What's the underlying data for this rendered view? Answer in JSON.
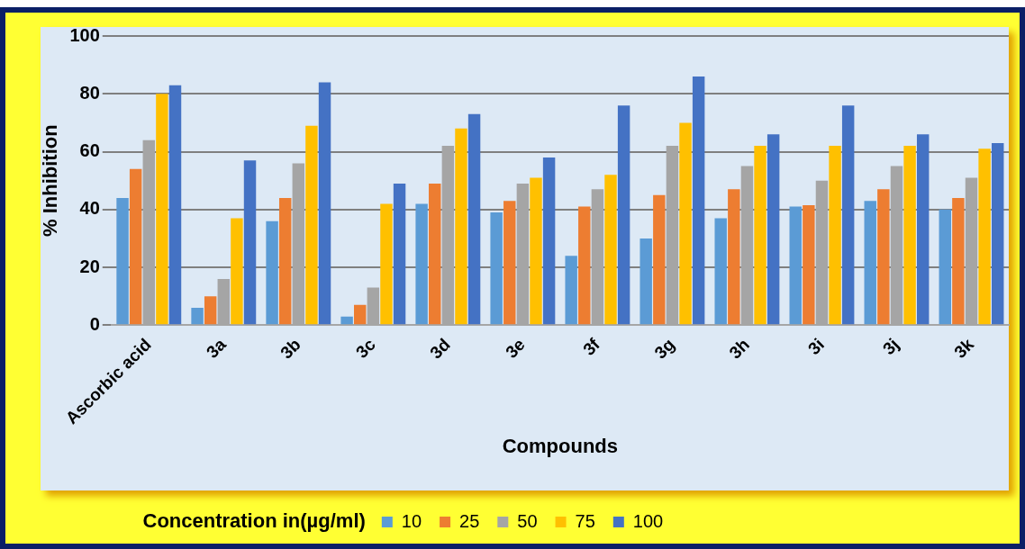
{
  "chart_data": {
    "type": "bar",
    "categories": [
      "Ascorbic acid",
      "3a",
      "3b",
      "3c",
      "3d",
      "3e",
      "3f",
      "3g",
      "3h",
      "3i",
      "3j",
      "3k"
    ],
    "series": [
      {
        "name": "10",
        "color": "#5b9bd5",
        "values": [
          44,
          6,
          36,
          3,
          42,
          39,
          24,
          30,
          37,
          41,
          43,
          40
        ]
      },
      {
        "name": "25",
        "color": "#ed7d31",
        "values": [
          54,
          10,
          44,
          7,
          49,
          43,
          41,
          45,
          47,
          41.5,
          47,
          44
        ]
      },
      {
        "name": "50",
        "color": "#a5a5a5",
        "values": [
          64,
          16,
          56,
          13,
          62,
          49,
          47,
          62,
          55,
          50,
          55,
          51
        ]
      },
      {
        "name": "75",
        "color": "#ffc000",
        "values": [
          80,
          37,
          69,
          42,
          68,
          51,
          52,
          70,
          62,
          62,
          62,
          61
        ]
      },
      {
        "name": "100",
        "color": "#4472c4",
        "values": [
          83,
          57,
          84,
          49,
          73,
          58,
          76,
          86,
          66,
          76,
          66,
          63
        ]
      }
    ],
    "xlabel": "Compounds",
    "ylabel": "% Inhibition",
    "legend_title": "Concentration in(µg/ml)",
    "ylim": [
      0,
      100
    ],
    "yticks": [
      0,
      20,
      40,
      60,
      80,
      100
    ],
    "grid": "y",
    "legend": "bottom"
  }
}
